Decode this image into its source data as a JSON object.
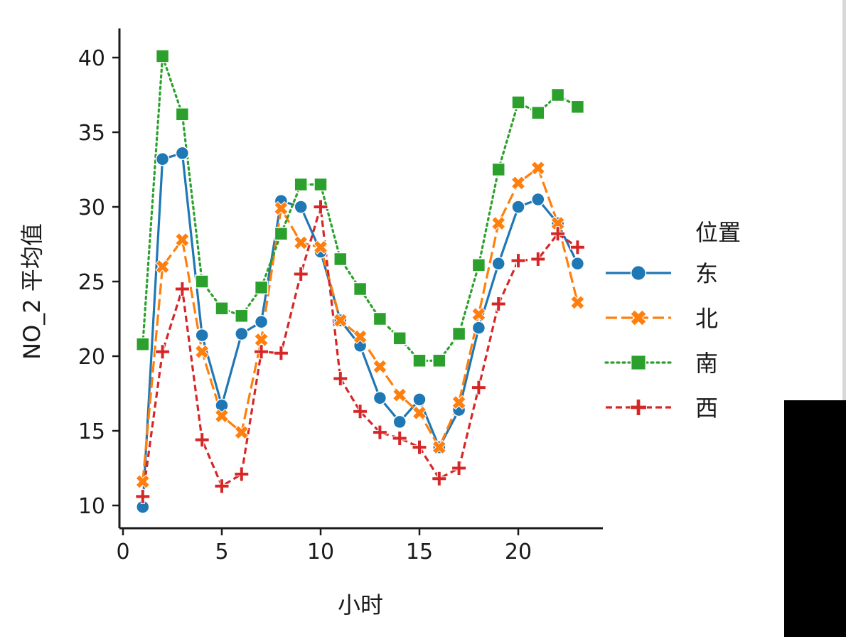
{
  "chart_data": {
    "type": "line",
    "title": "",
    "xlabel": "小时",
    "ylabel": "NO_2 平均值",
    "xlim": [
      0,
      24.5
    ],
    "ylim": [
      8.5,
      42
    ],
    "xticks": [
      0,
      5,
      10,
      15,
      20
    ],
    "yticks": [
      10,
      15,
      20,
      25,
      30,
      35,
      40
    ],
    "grid": false,
    "legend": {
      "title": "位置",
      "placement": "right"
    },
    "x": [
      1,
      2,
      3,
      4,
      5,
      6,
      7,
      8,
      9,
      10,
      11,
      12,
      13,
      14,
      15,
      16,
      17,
      18,
      19,
      20,
      21,
      22,
      23
    ],
    "series": [
      {
        "name": "东",
        "color": "#1f77b4",
        "dash": "solid",
        "marker": "circle",
        "values": [
          9.9,
          33.2,
          33.6,
          21.4,
          16.7,
          21.5,
          22.3,
          30.4,
          30.0,
          27.0,
          22.4,
          20.7,
          17.2,
          15.6,
          17.1,
          13.9,
          16.4,
          21.9,
          26.2,
          30.0,
          30.5,
          28.9,
          26.2
        ]
      },
      {
        "name": "北",
        "color": "#ff7f0e",
        "dash": "long-dash",
        "marker": "x",
        "values": [
          11.6,
          26.0,
          27.8,
          20.3,
          16.0,
          14.9,
          21.1,
          29.9,
          27.6,
          27.3,
          22.4,
          21.3,
          19.3,
          17.4,
          16.2,
          13.9,
          16.9,
          22.8,
          28.9,
          31.6,
          32.6,
          28.9,
          23.6
        ]
      },
      {
        "name": "南",
        "color": "#2ca02c",
        "dash": "dotted",
        "marker": "square",
        "values": [
          20.8,
          40.1,
          36.2,
          25.0,
          23.2,
          22.7,
          24.6,
          28.2,
          31.5,
          31.5,
          26.5,
          24.5,
          22.5,
          21.2,
          19.7,
          19.7,
          21.5,
          26.1,
          32.5,
          37.0,
          36.3,
          37.5,
          36.7
        ]
      },
      {
        "name": "西",
        "color": "#d62728",
        "dash": "short-dash",
        "marker": "plus",
        "values": [
          10.6,
          20.3,
          24.5,
          14.4,
          11.3,
          12.1,
          20.3,
          20.2,
          25.5,
          30.0,
          18.5,
          16.3,
          14.9,
          14.5,
          13.9,
          11.8,
          12.5,
          17.9,
          23.5,
          26.4,
          26.5,
          28.2,
          27.3
        ]
      }
    ]
  }
}
